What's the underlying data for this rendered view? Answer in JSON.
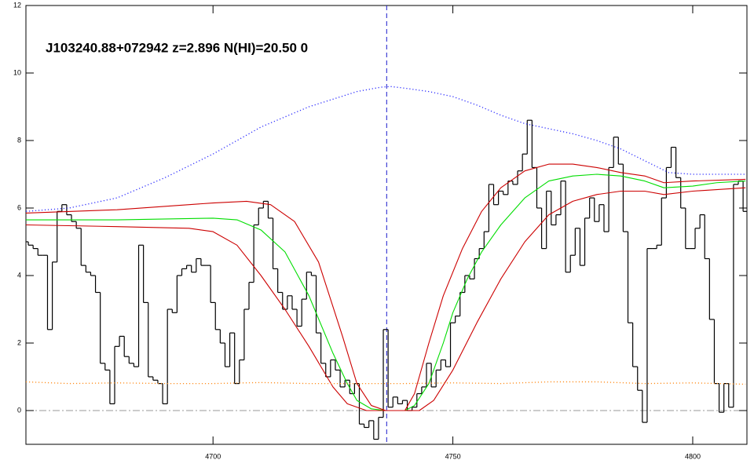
{
  "chart_data": {
    "type": "line",
    "title": "J103240.88+072942 z=2.896 N(HI)=20.50 0",
    "xlim": [
      4661,
      4811.3
    ],
    "ylim": [
      -1,
      12
    ],
    "xticks": [
      4700,
      4750,
      4800
    ],
    "yticks": [
      0,
      2,
      4,
      6,
      8,
      10,
      12
    ],
    "x": [
      4661,
      4662,
      4663,
      4664,
      4665,
      4666,
      4667,
      4668,
      4669,
      4670,
      4671,
      4672,
      4673,
      4674,
      4675,
      4676,
      4677,
      4678,
      4679,
      4680,
      4681,
      4682,
      4683,
      4684,
      4685,
      4686,
      4687,
      4688,
      4689,
      4690,
      4691,
      4692,
      4693,
      4694,
      4695,
      4696,
      4697,
      4698,
      4699,
      4700,
      4701,
      4702,
      4703,
      4704,
      4705,
      4706,
      4707,
      4708,
      4709,
      4710,
      4711,
      4712,
      4713,
      4714,
      4715,
      4716,
      4717,
      4718,
      4719,
      4720,
      4721,
      4722,
      4723,
      4724,
      4725,
      4726,
      4727,
      4728,
      4729,
      4730,
      4731,
      4732,
      4733,
      4734,
      4735,
      4736,
      4737,
      4738,
      4739,
      4740,
      4741,
      4742,
      4743,
      4744,
      4745,
      4746,
      4747,
      4748,
      4749,
      4750,
      4751,
      4752,
      4753,
      4754,
      4755,
      4756,
      4757,
      4758,
      4759,
      4760,
      4761,
      4762,
      4763,
      4764,
      4765,
      4766,
      4767,
      4768,
      4769,
      4770,
      4771,
      4772,
      4773,
      4774,
      4775,
      4776,
      4777,
      4778,
      4779,
      4780,
      4781,
      4782,
      4783,
      4784,
      4785,
      4786,
      4787,
      4788,
      4789,
      4790,
      4791,
      4792,
      4793,
      4794,
      4795,
      4796,
      4797,
      4798,
      4799,
      4800,
      4801,
      4802,
      4803,
      4804,
      4805,
      4806,
      4807,
      4808,
      4809,
      4810,
      4811
    ],
    "series": [
      {
        "color": "#000000",
        "step": true,
        "values": [
          5.0,
          4.9,
          4.8,
          4.6,
          4.6,
          2.4,
          4.4,
          5.9,
          6.1,
          5.8,
          5.6,
          5.4,
          4.3,
          4.1,
          4.0,
          3.5,
          1.4,
          1.2,
          0.2,
          1.9,
          2.2,
          1.6,
          1.4,
          1.3,
          4.9,
          3.2,
          1.0,
          0.9,
          0.8,
          0.2,
          3.0,
          2.9,
          4.0,
          4.2,
          4.3,
          4.1,
          4.5,
          4.3,
          4.3,
          3.2,
          2.4,
          2.0,
          1.3,
          2.3,
          0.8,
          1.5,
          3.0,
          3.8,
          5.5,
          6.0,
          6.2,
          5.7,
          4.2,
          3.5,
          3.0,
          3.4,
          3.0,
          2.5,
          3.3,
          4.1,
          4.0,
          2.3,
          1.4,
          1.0,
          1.5,
          1.2,
          0.7,
          0.9,
          0.5,
          0.8,
          -0.4,
          -0.5,
          -0.3,
          -0.85,
          -0.2,
          2.4,
          0.1,
          0.4,
          0.2,
          0.3,
          0.0,
          0.1,
          0.5,
          0.7,
          1.4,
          0.7,
          1.2,
          1.5,
          1.3,
          2.6,
          2.8,
          3.5,
          4.0,
          3.9,
          4.5,
          4.8,
          5.3,
          6.7,
          6.1,
          6.5,
          6.4,
          6.8,
          6.7,
          7.1,
          7.6,
          8.6,
          7.2,
          6.0,
          4.8,
          6.5,
          5.5,
          5.8,
          6.8,
          4.1,
          4.6,
          5.4,
          4.3,
          5.7,
          6.3,
          5.6,
          6.1,
          5.3,
          7.2,
          8.1,
          7.3,
          5.3,
          2.6,
          1.3,
          0.6,
          -0.35,
          4.8,
          4.8,
          4.9,
          6.3,
          7.2,
          7.8,
          6.9,
          6.0,
          4.8,
          4.8,
          5.4,
          5.8,
          4.5,
          2.7,
          0.8,
          -0.05,
          0.8,
          0.1,
          6.7,
          6.8,
          5.9
        ]
      },
      {
        "color": "#2a2aff",
        "dash": "dotted",
        "x": [
          4661,
          4670,
          4680,
          4690,
          4700,
          4710,
          4720,
          4730,
          4735,
          4737,
          4740,
          4745,
          4750,
          4755,
          4760,
          4765,
          4770,
          4775,
          4780,
          4785,
          4790,
          4795,
          4800,
          4805,
          4811
        ],
        "values": [
          5.9,
          6.0,
          6.3,
          6.9,
          7.6,
          8.4,
          9.0,
          9.45,
          9.58,
          9.6,
          9.55,
          9.45,
          9.3,
          9.05,
          8.75,
          8.5,
          8.35,
          8.2,
          8.0,
          7.75,
          7.4,
          7.05,
          7.0,
          7.0,
          7.0
        ]
      },
      {
        "color": "#00dd00",
        "x": [
          4661,
          4680,
          4700,
          4705,
          4710,
          4715,
          4720,
          4725,
          4728,
          4730,
          4733,
          4736,
          4740,
          4742,
          4745,
          4748,
          4750,
          4753,
          4756,
          4760,
          4765,
          4770,
          4775,
          4780,
          4785,
          4790,
          4794,
          4800,
          4805,
          4811
        ],
        "values": [
          5.65,
          5.65,
          5.7,
          5.65,
          5.35,
          4.7,
          3.4,
          1.7,
          0.8,
          0.3,
          0.05,
          0.0,
          0.0,
          0.15,
          0.8,
          2.0,
          2.9,
          3.9,
          4.7,
          5.5,
          6.3,
          6.8,
          6.95,
          7.0,
          6.95,
          6.8,
          6.6,
          6.65,
          6.75,
          6.8
        ]
      },
      {
        "color": "#cc0000",
        "x": [
          4661,
          4680,
          4700,
          4707,
          4712,
          4717,
          4722,
          4727,
          4730,
          4733,
          4736,
          4740,
          4742,
          4745,
          4748,
          4752,
          4756,
          4760,
          4765,
          4770,
          4775,
          4780,
          4785,
          4790,
          4794,
          4800,
          4811
        ],
        "values": [
          5.85,
          5.95,
          6.15,
          6.2,
          6.1,
          5.6,
          4.4,
          2.2,
          0.8,
          0.15,
          0.0,
          0.0,
          0.5,
          2.0,
          3.4,
          4.8,
          5.9,
          6.6,
          7.1,
          7.3,
          7.3,
          7.2,
          7.05,
          6.95,
          6.75,
          6.8,
          6.85
        ]
      },
      {
        "color": "#cc0000",
        "x": [
          4661,
          4680,
          4695,
          4700,
          4705,
          4710,
          4715,
          4720,
          4725,
          4728,
          4732,
          4743,
          4746,
          4750,
          4755,
          4760,
          4765,
          4770,
          4775,
          4780,
          4785,
          4790,
          4794,
          4800,
          4811
        ],
        "values": [
          5.5,
          5.45,
          5.4,
          5.3,
          4.9,
          4.0,
          3.0,
          1.9,
          0.7,
          0.2,
          0.0,
          0.0,
          0.3,
          1.2,
          2.6,
          3.9,
          5.0,
          5.8,
          6.2,
          6.4,
          6.5,
          6.5,
          6.4,
          6.5,
          6.6
        ]
      },
      {
        "color": "#ff8c1a",
        "dash": "dotted",
        "x": [
          4661,
          4670,
          4680,
          4690,
          4700,
          4710,
          4720,
          4730,
          4740,
          4750,
          4760,
          4770,
          4780,
          4790,
          4800,
          4811
        ],
        "values": [
          0.85,
          0.8,
          0.82,
          0.8,
          0.8,
          0.83,
          0.8,
          0.8,
          0.8,
          0.82,
          0.8,
          0.85,
          0.85,
          0.8,
          0.82,
          0.78
        ]
      }
    ],
    "hlines": [
      0
    ],
    "hline_color": "#999999",
    "hline_dash": "dashdot",
    "vlines": [
      4736.2
    ],
    "vline_color": "#1a1acc",
    "vline_dash": "dashed"
  }
}
